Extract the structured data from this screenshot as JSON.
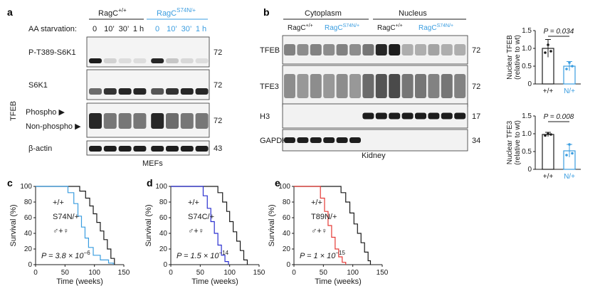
{
  "panels": {
    "a": "a",
    "b": "b",
    "c": "c",
    "d": "d",
    "e": "e"
  },
  "colors": {
    "blue": "#3a9de0",
    "navy": "#2a2fd0",
    "red": "#e53935",
    "black": "#1a1a1a"
  },
  "panel_a": {
    "genotype_wt": "RagC",
    "genotype_wt_sup": "+/+",
    "genotype_mut": "RagC",
    "genotype_mut_sup": "S74N/+",
    "aa_label": "AA starvation:",
    "timepoints": [
      "0",
      "10’",
      "30’",
      "1 h",
      "0",
      "10’",
      "30’",
      "1 h"
    ],
    "blots": [
      {
        "label": "P-T389-S6K1",
        "mw": "72"
      },
      {
        "label": "S6K1",
        "mw": "72"
      },
      {
        "label": "Phospho ▶",
        "label2": "Non-phospho ▶",
        "side": "TFEB",
        "mw": "72"
      },
      {
        "label": "β-actin",
        "mw": "43"
      }
    ],
    "footer": "MEFs"
  },
  "panel_b": {
    "cyto": "Cytoplasm",
    "nucleus": "Nucleus",
    "wt": "RagC",
    "wt_sup": "+/+",
    "mut": "RagC",
    "mut_sup": "S74N/+",
    "blots": [
      {
        "label": "TFEB",
        "mw": "72"
      },
      {
        "label": "TFE3",
        "mw": "72"
      },
      {
        "label": "H3",
        "mw": "17"
      },
      {
        "label": "GAPDH",
        "mw": "34"
      }
    ],
    "footer": "Kidney"
  },
  "chart_data": [
    {
      "type": "bar",
      "id": "nuclear-tfeb",
      "ylabel": "Nuclear TFEB\n(relative to wt)",
      "categories": [
        "+/+",
        "N/+"
      ],
      "values": [
        1.0,
        0.5
      ],
      "errors": [
        0.25,
        0.13
      ],
      "ylim": [
        0,
        1.5
      ],
      "yticks": [
        "0",
        "0.5",
        "1.0",
        "1.5"
      ],
      "points": [
        [
          0.88,
          1.1,
          0.92
        ],
        [
          0.42,
          0.6,
          0.5
        ]
      ],
      "annotation": "P = 0.034"
    },
    {
      "type": "bar",
      "id": "nuclear-tfe3",
      "ylabel": "Nuclear TFE3\n(relative to wt)",
      "categories": [
        "+/+",
        "N/+"
      ],
      "values": [
        0.98,
        0.52
      ],
      "errors": [
        0.06,
        0.18
      ],
      "ylim": [
        0,
        1.5
      ],
      "yticks": [
        "0",
        "0.5",
        "1.0",
        "1.5"
      ],
      "points": [
        [
          0.95,
          1.0,
          0.98
        ],
        [
          0.4,
          0.7,
          0.45
        ]
      ],
      "annotation": "P = 0.008"
    },
    {
      "type": "line",
      "id": "survival-c",
      "ylabel": "Survival (%)",
      "xlabel": "Time (weeks)",
      "xlim": [
        0,
        150
      ],
      "ylim": [
        0,
        100
      ],
      "xticks": [
        "0",
        "50",
        "100",
        "150"
      ],
      "yticks": [
        "0",
        "20",
        "40",
        "60",
        "80",
        "100"
      ],
      "series": [
        {
          "name": "+/+",
          "color": "#1a1a1a",
          "x": [
            0,
            60,
            75,
            85,
            92,
            98,
            104,
            110,
            116,
            122,
            128,
            134
          ],
          "y": [
            100,
            100,
            94,
            85,
            75,
            65,
            54,
            43,
            32,
            20,
            8,
            0
          ]
        },
        {
          "name": "S74N/+",
          "color": "#3a9de0",
          "x": [
            0,
            45,
            55,
            65,
            72,
            78,
            84,
            90,
            98,
            110,
            124,
            132
          ],
          "y": [
            100,
            100,
            92,
            78,
            62,
            48,
            34,
            22,
            12,
            6,
            2,
            0
          ]
        }
      ],
      "legend": [
        "+/+",
        "S74N/+",
        "♂+♀"
      ],
      "pvalue": "P = 3.8 × 10",
      "pvalue_exp": "−6"
    },
    {
      "type": "line",
      "id": "survival-d",
      "ylabel": "Survival (%)",
      "xlabel": "Time (weeks)",
      "xlim": [
        0,
        150
      ],
      "ylim": [
        0,
        100
      ],
      "xticks": [
        "0",
        "50",
        "100",
        "150"
      ],
      "yticks": [
        "0",
        "20",
        "40",
        "60",
        "80",
        "100"
      ],
      "series": [
        {
          "name": "+/+",
          "color": "#1a1a1a",
          "x": [
            0,
            70,
            80,
            88,
            95,
            100,
            106,
            112,
            118,
            124,
            130
          ],
          "y": [
            100,
            100,
            92,
            80,
            68,
            55,
            42,
            30,
            18,
            6,
            0
          ]
        },
        {
          "name": "S74C/+",
          "color": "#2a2fd0",
          "x": [
            0,
            45,
            55,
            62,
            68,
            74,
            80,
            86,
            92,
            98
          ],
          "y": [
            100,
            100,
            88,
            72,
            55,
            40,
            25,
            12,
            4,
            0
          ]
        }
      ],
      "legend": [
        "+/+",
        "S74C/+",
        "♂+♀"
      ],
      "pvalue": "P = 1.5 × 10",
      "pvalue_exp": "−14"
    },
    {
      "type": "line",
      "id": "survival-e",
      "ylabel": "Survival (%)",
      "xlabel": "Time (weeks)",
      "xlim": [
        0,
        150
      ],
      "ylim": [
        0,
        100
      ],
      "xticks": [
        "0",
        "50",
        "100",
        "150"
      ],
      "yticks": [
        "0",
        "20",
        "40",
        "60",
        "80",
        "100"
      ],
      "series": [
        {
          "name": "+/+",
          "color": "#1a1a1a",
          "x": [
            0,
            70,
            80,
            88,
            95,
            102,
            108,
            114,
            120,
            126,
            130
          ],
          "y": [
            100,
            100,
            92,
            80,
            66,
            52,
            40,
            28,
            16,
            5,
            0
          ]
        },
        {
          "name": "T89N/+",
          "color": "#e53935",
          "x": [
            0,
            35,
            45,
            52,
            58,
            64,
            70,
            76,
            82,
            88
          ],
          "y": [
            100,
            100,
            85,
            68,
            50,
            35,
            20,
            10,
            3,
            0
          ]
        }
      ],
      "legend": [
        "+/+",
        "T89N/+",
        "♂+♀"
      ],
      "pvalue": "P = 1 × 10",
      "pvalue_exp": "−15"
    }
  ]
}
